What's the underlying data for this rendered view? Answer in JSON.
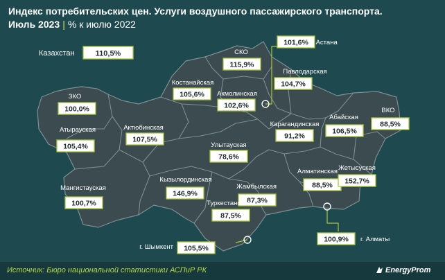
{
  "header": {
    "title": "Индекс потребительских цен. Услуги воздушного пассажирского транспорта.",
    "period": "Июль 2023",
    "separator": "|",
    "comparison": "% к июлю 2022"
  },
  "colors": {
    "background": "#1e4a4f",
    "region_fill": "#3b4b4f",
    "region_stroke": "#7d8f92",
    "accent": "#a8c63b",
    "label_box": "#ffffff"
  },
  "national": {
    "name": "Казахстан",
    "value": "110,5%"
  },
  "regions": [
    {
      "name": "СКО",
      "value": "115,9%"
    },
    {
      "name": "г. Астана",
      "value": "101,6%"
    },
    {
      "name": "Павлодарская",
      "value": "104,7%"
    },
    {
      "name": "Костанайская",
      "value": "105,6%"
    },
    {
      "name": "Акмолинская",
      "value": "102,6%"
    },
    {
      "name": "ЗКО",
      "value": "100,0%"
    },
    {
      "name": "Атырауская",
      "value": "105,4%"
    },
    {
      "name": "Актюбинская",
      "value": "107,5%"
    },
    {
      "name": "Карагандинская",
      "value": "91,2%"
    },
    {
      "name": "Абайская",
      "value": "106,5%"
    },
    {
      "name": "ВКО",
      "value": "88,5%"
    },
    {
      "name": "Улытауская",
      "value": "78,6%"
    },
    {
      "name": "Мангистауская",
      "value": "100,7%"
    },
    {
      "name": "Кызылординская",
      "value": "146,9%"
    },
    {
      "name": "Алматинская",
      "value": "88,5%"
    },
    {
      "name": "Жетысуская",
      "value": "152,7%"
    },
    {
      "name": "Жамбылская",
      "value": "87,3%"
    },
    {
      "name": "Туркестанская",
      "value": "87,5%"
    },
    {
      "name": "г. Алматы",
      "value": "100,9%"
    },
    {
      "name": "г. Шымкент",
      "value": "105,5%"
    }
  ],
  "footer": {
    "source": "Источник: Бюро национальной статистики АСПиР РК",
    "brand": "EnergyProm"
  }
}
